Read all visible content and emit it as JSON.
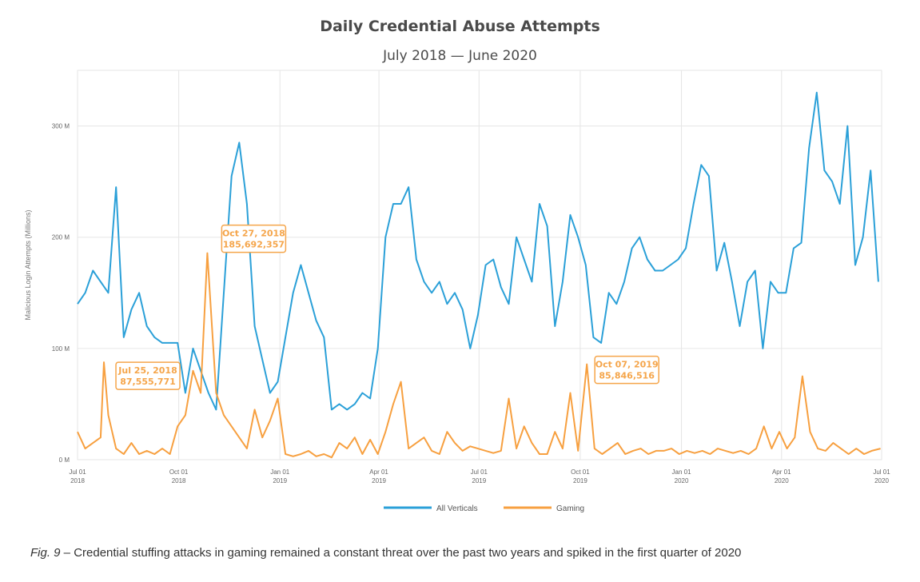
{
  "chart_data": {
    "type": "line",
    "title": "Daily Credential Abuse Attempts",
    "subtitle": "July 2018 — June 2020",
    "ylabel": "Malicious Login Attempts (Millions)",
    "xlabel": "",
    "ylim": [
      0,
      350
    ],
    "y_ticks": [
      {
        "value": 0,
        "label": "0 M"
      },
      {
        "value": 100,
        "label": "100 M"
      },
      {
        "value": 200,
        "label": "200 M"
      },
      {
        "value": 300,
        "label": "300 M"
      }
    ],
    "x_range": [
      "2018-07-01",
      "2020-07-01"
    ],
    "x_ticks": [
      {
        "date": "2018-07-01",
        "line1": "Jul 01",
        "line2": "2018"
      },
      {
        "date": "2018-10-01",
        "line1": "Oct 01",
        "line2": "2018"
      },
      {
        "date": "2019-01-01",
        "line1": "Jan 01",
        "line2": "2019"
      },
      {
        "date": "2019-04-01",
        "line1": "Apr 01",
        "line2": "2019"
      },
      {
        "date": "2019-07-01",
        "line1": "Jul 01",
        "line2": "2019"
      },
      {
        "date": "2019-10-01",
        "line1": "Oct 01",
        "line2": "2019"
      },
      {
        "date": "2020-01-01",
        "line1": "Jan 01",
        "line2": "2020"
      },
      {
        "date": "2020-04-01",
        "line1": "Apr 01",
        "line2": "2020"
      },
      {
        "date": "2020-07-01",
        "line1": "Jul 01",
        "line2": "2020"
      }
    ],
    "grid": true,
    "legend_position": "bottom-center",
    "series": [
      {
        "name": "All Verticals",
        "color": "#2ba0d8",
        "x": [
          "2018-07-01",
          "2018-07-08",
          "2018-07-15",
          "2018-07-22",
          "2018-07-29",
          "2018-08-05",
          "2018-08-12",
          "2018-08-19",
          "2018-08-26",
          "2018-09-02",
          "2018-09-09",
          "2018-09-16",
          "2018-09-23",
          "2018-09-30",
          "2018-10-07",
          "2018-10-14",
          "2018-10-21",
          "2018-10-28",
          "2018-11-04",
          "2018-11-11",
          "2018-11-18",
          "2018-11-25",
          "2018-12-02",
          "2018-12-09",
          "2018-12-16",
          "2018-12-23",
          "2018-12-30",
          "2019-01-06",
          "2019-01-13",
          "2019-01-20",
          "2019-01-27",
          "2019-02-03",
          "2019-02-10",
          "2019-02-17",
          "2019-02-24",
          "2019-03-03",
          "2019-03-10",
          "2019-03-17",
          "2019-03-24",
          "2019-03-31",
          "2019-04-07",
          "2019-04-14",
          "2019-04-21",
          "2019-04-28",
          "2019-05-05",
          "2019-05-12",
          "2019-05-19",
          "2019-05-26",
          "2019-06-02",
          "2019-06-09",
          "2019-06-16",
          "2019-06-23",
          "2019-06-30",
          "2019-07-07",
          "2019-07-14",
          "2019-07-21",
          "2019-07-28",
          "2019-08-04",
          "2019-08-11",
          "2019-08-18",
          "2019-08-25",
          "2019-09-01",
          "2019-09-08",
          "2019-09-15",
          "2019-09-22",
          "2019-09-29",
          "2019-10-06",
          "2019-10-13",
          "2019-10-20",
          "2019-10-27",
          "2019-11-03",
          "2019-11-10",
          "2019-11-17",
          "2019-11-24",
          "2019-12-01",
          "2019-12-08",
          "2019-12-15",
          "2019-12-22",
          "2019-12-29",
          "2020-01-05",
          "2020-01-12",
          "2020-01-19",
          "2020-01-26",
          "2020-02-02",
          "2020-02-09",
          "2020-02-16",
          "2020-02-23",
          "2020-03-01",
          "2020-03-08",
          "2020-03-15",
          "2020-03-22",
          "2020-03-29",
          "2020-04-05",
          "2020-04-12",
          "2020-04-19",
          "2020-04-26",
          "2020-05-03",
          "2020-05-10",
          "2020-05-17",
          "2020-05-24",
          "2020-05-31",
          "2020-06-07",
          "2020-06-14",
          "2020-06-21",
          "2020-06-28"
        ],
        "y": [
          140,
          150,
          170,
          160,
          150,
          245,
          110,
          135,
          150,
          120,
          110,
          105,
          105,
          105,
          60,
          100,
          80,
          60,
          45,
          150,
          255,
          285,
          230,
          120,
          90,
          60,
          70,
          110,
          150,
          175,
          150,
          125,
          110,
          45,
          50,
          45,
          50,
          60,
          55,
          100,
          200,
          230,
          230,
          245,
          180,
          160,
          150,
          160,
          140,
          150,
          135,
          100,
          130,
          175,
          180,
          155,
          140,
          200,
          180,
          160,
          230,
          210,
          120,
          160,
          220,
          200,
          175,
          110,
          105,
          150,
          140,
          160,
          190,
          200,
          180,
          170,
          170,
          175,
          180,
          190,
          230,
          265,
          255,
          170,
          195,
          160,
          120,
          160,
          170,
          100,
          160,
          150,
          150,
          190,
          195,
          280,
          330,
          260,
          250,
          230,
          300,
          175,
          200,
          260,
          160
        ]
      },
      {
        "name": "Gaming",
        "color": "#f7a040",
        "x": [
          "2018-07-01",
          "2018-07-08",
          "2018-07-15",
          "2018-07-22",
          "2018-07-25",
          "2018-07-29",
          "2018-08-05",
          "2018-08-12",
          "2018-08-19",
          "2018-08-26",
          "2018-09-02",
          "2018-09-09",
          "2018-09-16",
          "2018-09-23",
          "2018-09-30",
          "2018-10-07",
          "2018-10-14",
          "2018-10-21",
          "2018-10-27",
          "2018-11-04",
          "2018-11-11",
          "2018-11-18",
          "2018-11-25",
          "2018-12-02",
          "2018-12-09",
          "2018-12-16",
          "2018-12-23",
          "2018-12-30",
          "2019-01-06",
          "2019-01-13",
          "2019-01-20",
          "2019-01-27",
          "2019-02-03",
          "2019-02-10",
          "2019-02-17",
          "2019-02-24",
          "2019-03-03",
          "2019-03-10",
          "2019-03-17",
          "2019-03-24",
          "2019-03-31",
          "2019-04-07",
          "2019-04-14",
          "2019-04-21",
          "2019-04-28",
          "2019-05-05",
          "2019-05-12",
          "2019-05-19",
          "2019-05-26",
          "2019-06-02",
          "2019-06-09",
          "2019-06-16",
          "2019-06-23",
          "2019-06-30",
          "2019-07-07",
          "2019-07-14",
          "2019-07-21",
          "2019-07-28",
          "2019-08-04",
          "2019-08-11",
          "2019-08-18",
          "2019-08-25",
          "2019-09-01",
          "2019-09-08",
          "2019-09-15",
          "2019-09-22",
          "2019-09-29",
          "2019-10-07",
          "2019-10-14",
          "2019-10-21",
          "2019-10-28",
          "2019-11-04",
          "2019-11-11",
          "2019-11-18",
          "2019-11-25",
          "2019-12-02",
          "2019-12-09",
          "2019-12-16",
          "2019-12-23",
          "2019-12-30",
          "2020-01-06",
          "2020-01-13",
          "2020-01-20",
          "2020-01-27",
          "2020-02-03",
          "2020-02-10",
          "2020-02-17",
          "2020-02-24",
          "2020-03-02",
          "2020-03-09",
          "2020-03-16",
          "2020-03-23",
          "2020-03-30",
          "2020-04-06",
          "2020-04-13",
          "2020-04-20",
          "2020-04-27",
          "2020-05-04",
          "2020-05-11",
          "2020-05-18",
          "2020-05-25",
          "2020-06-01",
          "2020-06-08",
          "2020-06-15",
          "2020-06-22",
          "2020-06-30"
        ],
        "y": [
          25,
          10,
          15,
          20,
          87.6,
          40,
          10,
          5,
          15,
          5,
          8,
          5,
          10,
          5,
          30,
          40,
          80,
          60,
          185.7,
          60,
          40,
          30,
          20,
          10,
          45,
          20,
          35,
          55,
          5,
          3,
          5,
          8,
          3,
          5,
          2,
          15,
          10,
          20,
          5,
          18,
          5,
          25,
          50,
          70,
          10,
          15,
          20,
          8,
          5,
          25,
          15,
          8,
          12,
          10,
          8,
          6,
          8,
          55,
          10,
          30,
          15,
          5,
          5,
          25,
          10,
          60,
          8,
          85.8,
          10,
          5,
          10,
          15,
          5,
          8,
          10,
          5,
          8,
          8,
          10,
          5,
          8,
          6,
          8,
          5,
          10,
          8,
          6,
          8,
          5,
          10,
          30,
          10,
          25,
          10,
          20,
          75,
          25,
          10,
          8,
          15,
          10,
          5,
          10,
          5,
          8,
          10
        ],
        "annotations": [
          {
            "date": "2018-07-25",
            "label_date": "Jul 25, 2018",
            "label_value": "87,555,771"
          },
          {
            "date": "2018-10-27",
            "label_date": "Oct 27, 2018",
            "label_value": "185,692,357"
          },
          {
            "date": "2019-10-07",
            "label_date": "Oct 07, 2019",
            "label_value": "85,846,516"
          }
        ]
      }
    ]
  },
  "caption": {
    "fig": "Fig. 9",
    "text": " – Credential stuffing attacks in gaming remained a constant threat over the past two years and spiked in the first quarter of 2020"
  }
}
